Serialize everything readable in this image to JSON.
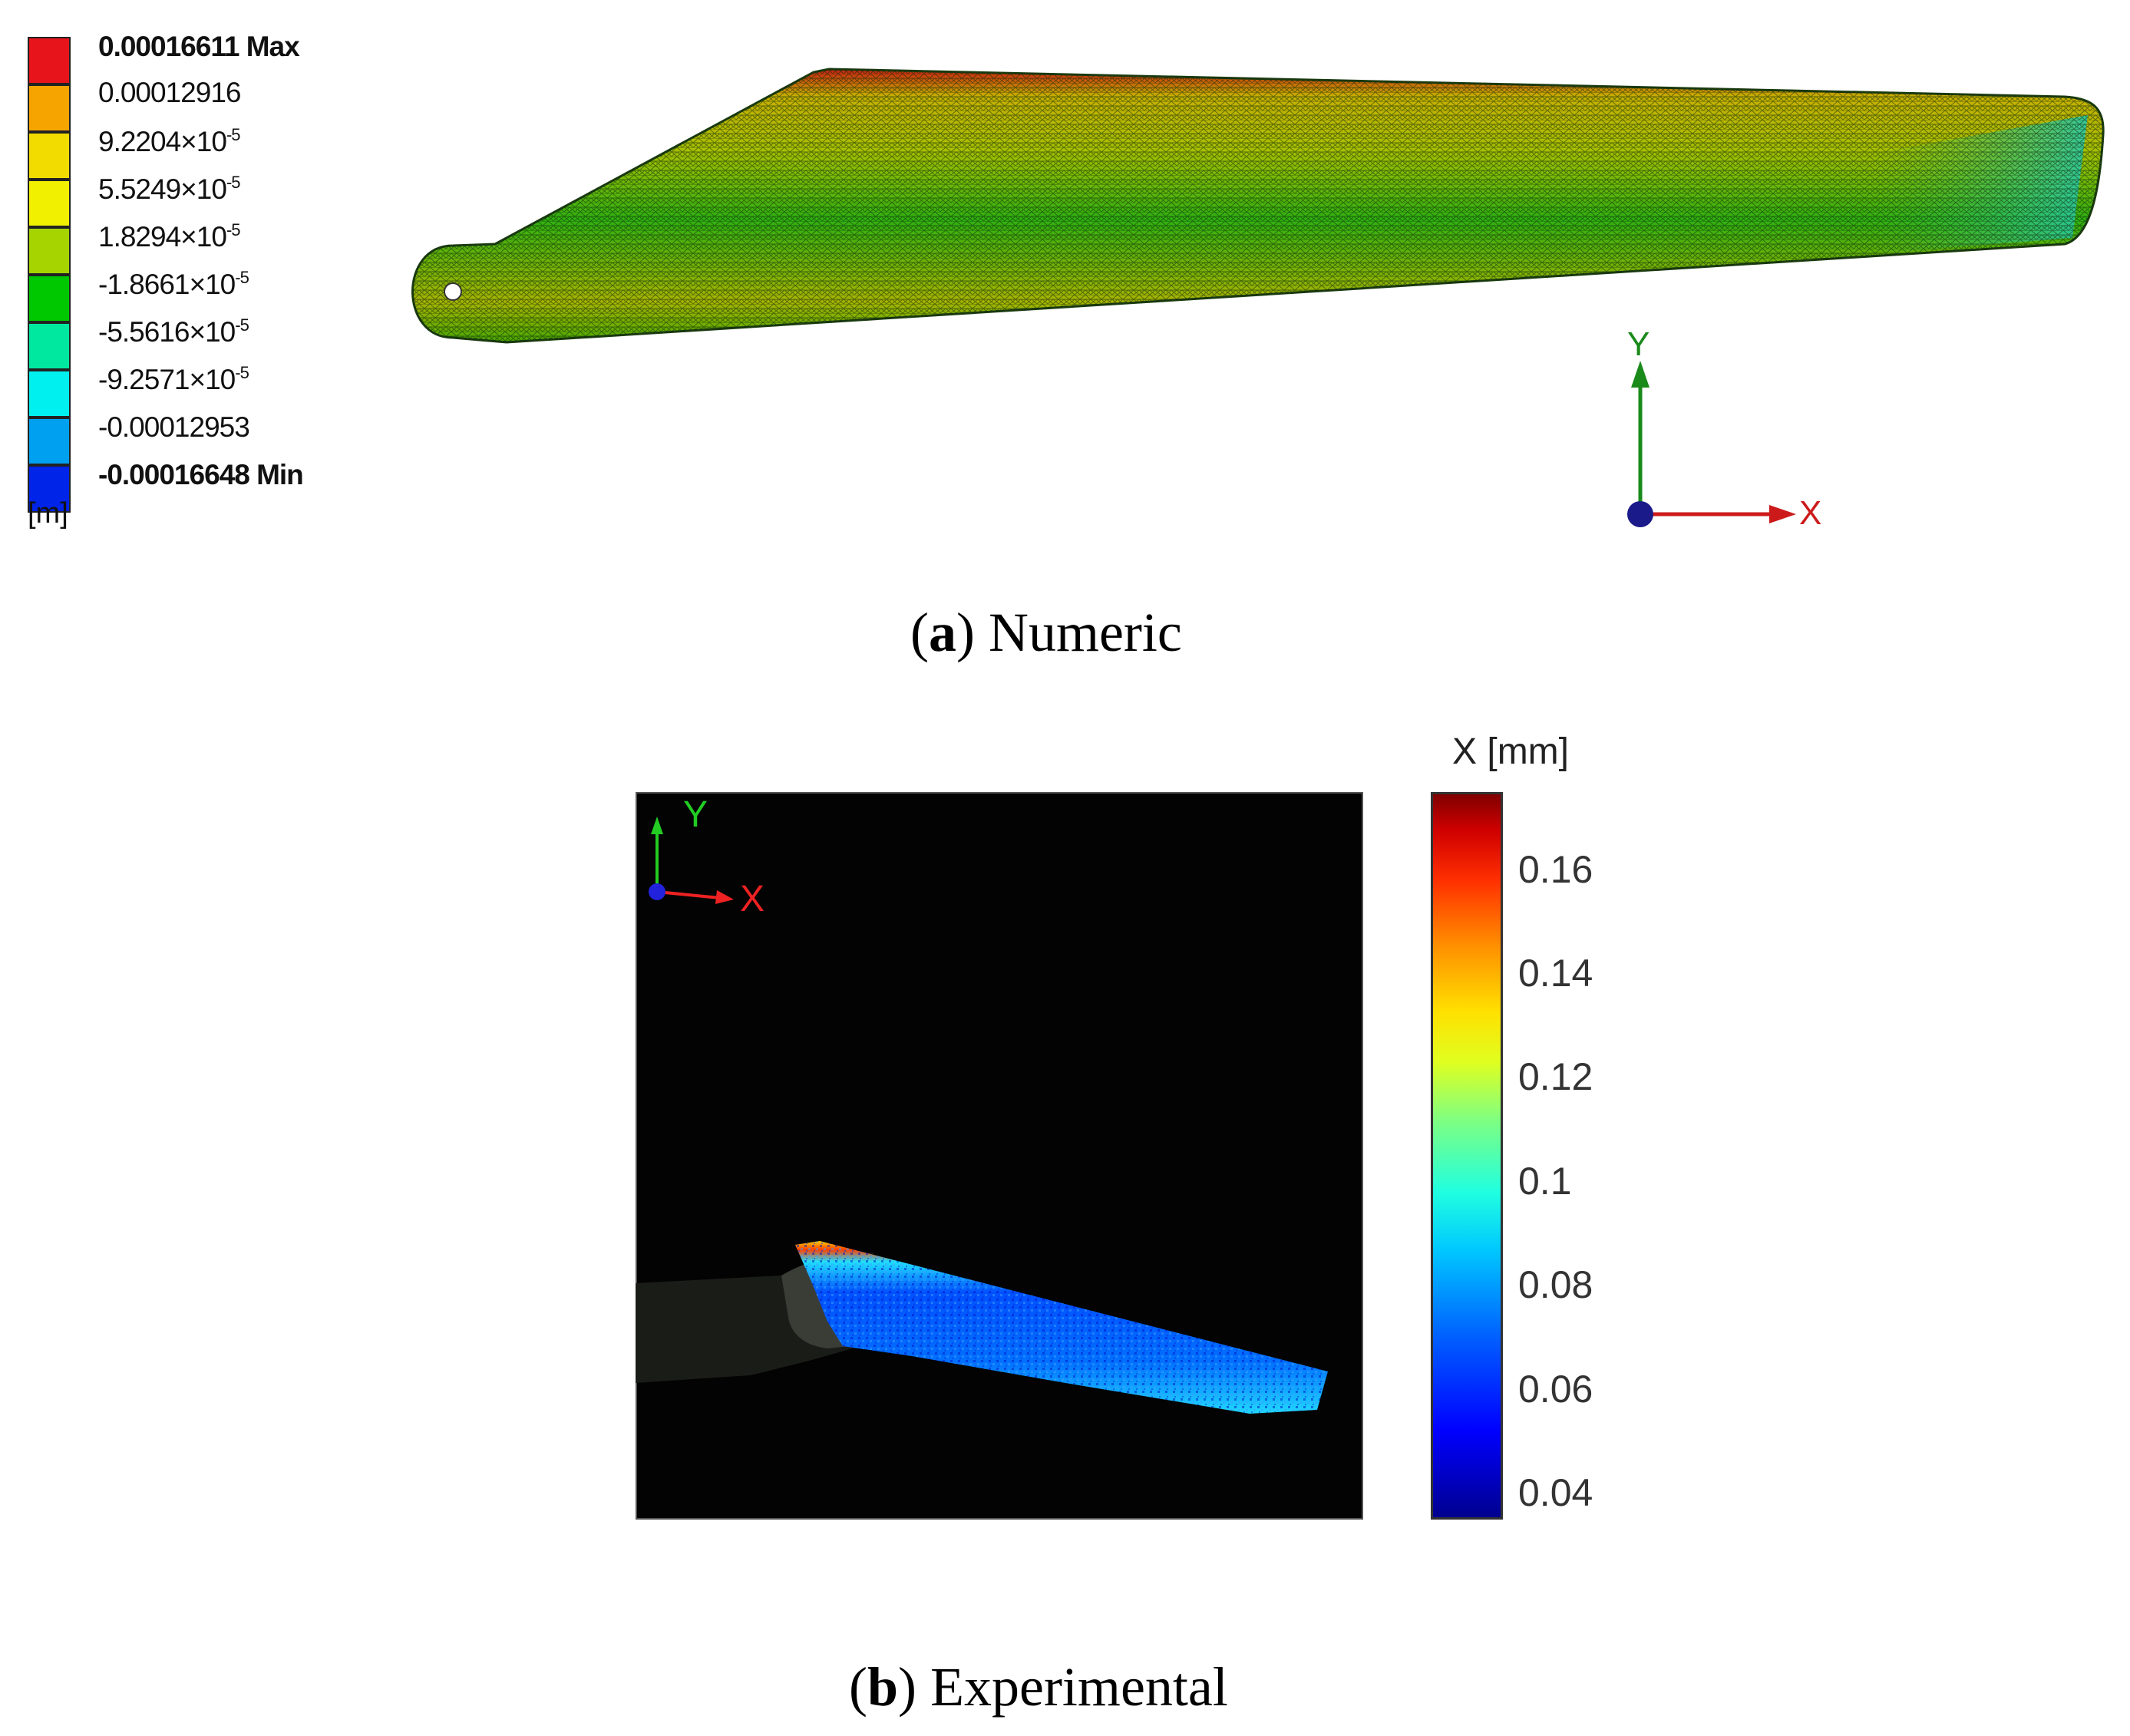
{
  "panel_a": {
    "legend": {
      "entries": [
        {
          "mantissa": "0.00016611 Max",
          "exp": "",
          "bold": true,
          "color": "#e8141c"
        },
        {
          "mantissa": "0.00012916",
          "exp": "",
          "bold": false,
          "color": "#f5a400"
        },
        {
          "mantissa": "9.2204×10",
          "exp": "-5",
          "bold": false,
          "color": "#f2dc00"
        },
        {
          "mantissa": "5.5249×10",
          "exp": "-5",
          "bold": false,
          "color": "#f0f000"
        },
        {
          "mantissa": "1.8294×10",
          "exp": "-5",
          "bold": false,
          "color": "#a6d400"
        },
        {
          "mantissa": "-1.8661×10",
          "exp": "-5",
          "bold": false,
          "color": "#00c800"
        },
        {
          "mantissa": "-5.5616×10",
          "exp": "-5",
          "bold": false,
          "color": "#00e8a0"
        },
        {
          "mantissa": "-9.2571×10",
          "exp": "-5",
          "bold": false,
          "color": "#00f0f0"
        },
        {
          "mantissa": "-0.00012953",
          "exp": "",
          "bold": false,
          "color": "#00a0f0"
        },
        {
          "mantissa": "-0.00016648 Min",
          "exp": "",
          "bold": true,
          "color": "#0024e8"
        }
      ],
      "unit": "[m]"
    },
    "axis_y": "Y",
    "axis_x": "X",
    "caption_letter": "a",
    "caption_text": " Numeric"
  },
  "panel_b": {
    "axis_y": "Y",
    "axis_x": "X",
    "colorbar": {
      "title": "X  [mm]",
      "ticks": [
        "0.16",
        "0.14",
        "0.12",
        "0.1",
        "0.08",
        "0.06",
        "0.04"
      ],
      "range": [
        0.035,
        0.175
      ]
    },
    "caption_letter": "b",
    "caption_text": " Experimental"
  }
}
